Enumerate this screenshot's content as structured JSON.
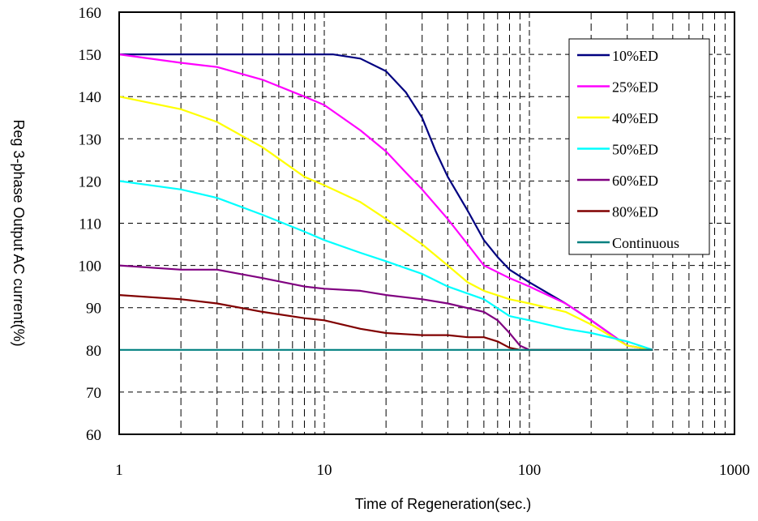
{
  "chart_data": {
    "type": "line",
    "title": "",
    "xlabel": "Time of Regeneration(sec.)",
    "ylabel": "Reg 3-phase Output AC current(%)",
    "xscale": "log",
    "xlim": [
      1,
      1000
    ],
    "ylim": [
      60,
      160
    ],
    "x_ticks": [
      1,
      10,
      100,
      1000
    ],
    "x_tick_labels": [
      "1",
      "10",
      "100",
      "1000"
    ],
    "y_ticks": [
      60,
      70,
      80,
      90,
      100,
      110,
      120,
      130,
      140,
      150,
      160
    ],
    "y_tick_labels": [
      "60",
      "70",
      "80",
      "90",
      "100",
      "110",
      "120",
      "130",
      "140",
      "150",
      "160"
    ],
    "grid": true,
    "grid_style": "dashed",
    "legend_position": "top-right",
    "series": [
      {
        "name": "10%ED",
        "color": "#000080",
        "points": [
          [
            1,
            150
          ],
          [
            5,
            150
          ],
          [
            11,
            150
          ],
          [
            15,
            149
          ],
          [
            20,
            146
          ],
          [
            25,
            141
          ],
          [
            30,
            135
          ],
          [
            35,
            127
          ],
          [
            40,
            121
          ],
          [
            50,
            113
          ],
          [
            60,
            106
          ],
          [
            70,
            102
          ],
          [
            80,
            99
          ],
          [
            100,
            96
          ],
          [
            150,
            91
          ],
          [
            200,
            87
          ],
          [
            300,
            81
          ],
          [
            400,
            80
          ]
        ]
      },
      {
        "name": "25%ED",
        "color": "#ff00ff",
        "points": [
          [
            1,
            150
          ],
          [
            2,
            148
          ],
          [
            3,
            147
          ],
          [
            5,
            144
          ],
          [
            8,
            140
          ],
          [
            10,
            138
          ],
          [
            15,
            132
          ],
          [
            20,
            127
          ],
          [
            25,
            122
          ],
          [
            30,
            118
          ],
          [
            40,
            111
          ],
          [
            50,
            105
          ],
          [
            60,
            100
          ],
          [
            80,
            97
          ],
          [
            100,
            95
          ],
          [
            150,
            91
          ],
          [
            200,
            87
          ],
          [
            300,
            81
          ],
          [
            400,
            80
          ]
        ]
      },
      {
        "name": "40%ED",
        "color": "#ffff00",
        "points": [
          [
            1,
            140
          ],
          [
            2,
            137
          ],
          [
            3,
            134
          ],
          [
            5,
            128
          ],
          [
            8,
            121
          ],
          [
            10,
            119
          ],
          [
            15,
            115
          ],
          [
            20,
            111
          ],
          [
            30,
            105
          ],
          [
            40,
            100
          ],
          [
            50,
            96
          ],
          [
            60,
            94
          ],
          [
            80,
            92
          ],
          [
            100,
            91
          ],
          [
            150,
            89
          ],
          [
            200,
            86
          ],
          [
            300,
            81
          ],
          [
            400,
            80
          ]
        ]
      },
      {
        "name": "50%ED",
        "color": "#00ffff",
        "points": [
          [
            1,
            120
          ],
          [
            2,
            118
          ],
          [
            3,
            116
          ],
          [
            5,
            112
          ],
          [
            8,
            108
          ],
          [
            10,
            106
          ],
          [
            15,
            103
          ],
          [
            20,
            101
          ],
          [
            30,
            98
          ],
          [
            40,
            95
          ],
          [
            60,
            92
          ],
          [
            80,
            88
          ],
          [
            100,
            87
          ],
          [
            150,
            85
          ],
          [
            200,
            84
          ],
          [
            300,
            82
          ],
          [
            400,
            80
          ]
        ]
      },
      {
        "name": "60%ED",
        "color": "#800080",
        "points": [
          [
            1,
            100
          ],
          [
            2,
            99
          ],
          [
            3,
            99
          ],
          [
            5,
            97
          ],
          [
            8,
            95
          ],
          [
            10,
            94.5
          ],
          [
            15,
            94
          ],
          [
            20,
            93
          ],
          [
            30,
            92
          ],
          [
            40,
            91
          ],
          [
            60,
            89
          ],
          [
            70,
            87
          ],
          [
            80,
            84
          ],
          [
            90,
            81
          ],
          [
            100,
            80
          ],
          [
            400,
            80
          ]
        ]
      },
      {
        "name": "80%ED",
        "color": "#800000",
        "points": [
          [
            1,
            93
          ],
          [
            2,
            92
          ],
          [
            3,
            91
          ],
          [
            5,
            89
          ],
          [
            8,
            87.5
          ],
          [
            10,
            87
          ],
          [
            15,
            85
          ],
          [
            20,
            84
          ],
          [
            30,
            83.5
          ],
          [
            40,
            83.5
          ],
          [
            50,
            83
          ],
          [
            60,
            83
          ],
          [
            70,
            82
          ],
          [
            80,
            80.5
          ],
          [
            90,
            80
          ],
          [
            400,
            80
          ]
        ]
      },
      {
        "name": "Continuous",
        "color": "#008080",
        "points": [
          [
            1,
            80
          ],
          [
            400,
            80
          ]
        ]
      }
    ]
  }
}
